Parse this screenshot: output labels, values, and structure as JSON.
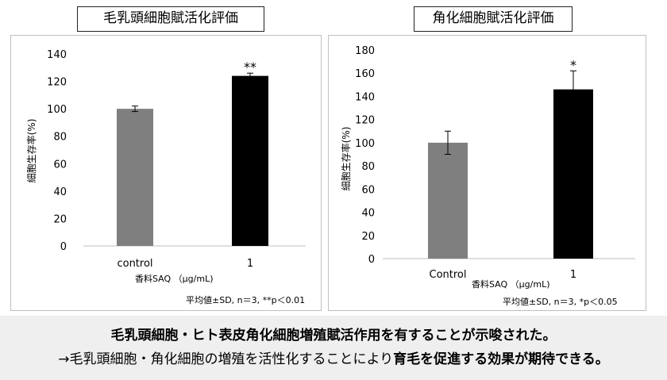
{
  "charts_titles": {
    "left": "毛乳頭細胞賦活化評価",
    "right": "角化細胞賦活化評価"
  },
  "chart_data": [
    {
      "type": "bar",
      "title": "毛乳頭細胞賦活化評価",
      "categories": [
        "control",
        "1"
      ],
      "values": [
        100,
        124
      ],
      "errors": [
        2,
        2
      ],
      "colors": [
        "#7f7f7f",
        "#000000"
      ],
      "significance": [
        "",
        "**"
      ],
      "ylabel": "細胞生存率(%)",
      "xlabel": "香料SAQ （μg/mL)",
      "ylim": [
        0,
        140
      ],
      "yticks": [
        0,
        20,
        40,
        60,
        80,
        100,
        120,
        140
      ],
      "grid": false,
      "note": "平均値±SD, n＝3, **p＜0.01"
    },
    {
      "type": "bar",
      "title": "角化細胞賦活化評価",
      "categories": [
        "Control",
        "1"
      ],
      "values": [
        100,
        146
      ],
      "errors": [
        10,
        16
      ],
      "colors": [
        "#7f7f7f",
        "#000000"
      ],
      "significance": [
        "",
        "*"
      ],
      "ylabel": "細胞生存率(%)",
      "xlabel": "香料SAQ （μg/mL)",
      "ylim": [
        0,
        180
      ],
      "yticks": [
        0,
        20,
        40,
        60,
        80,
        100,
        120,
        140,
        160,
        180
      ],
      "grid": false,
      "note": "平均値±SD, n＝3, *p＜0.05"
    }
  ],
  "footer": {
    "line1": "毛乳頭細胞・ヒト表皮角化細胞増殖賦活作用を有することが示唆された。",
    "line2_prefix": "→毛乳頭細胞・角化細胞の増殖を活性化することにより",
    "line2_bold": "育毛を促進する効果が期待できる。"
  }
}
